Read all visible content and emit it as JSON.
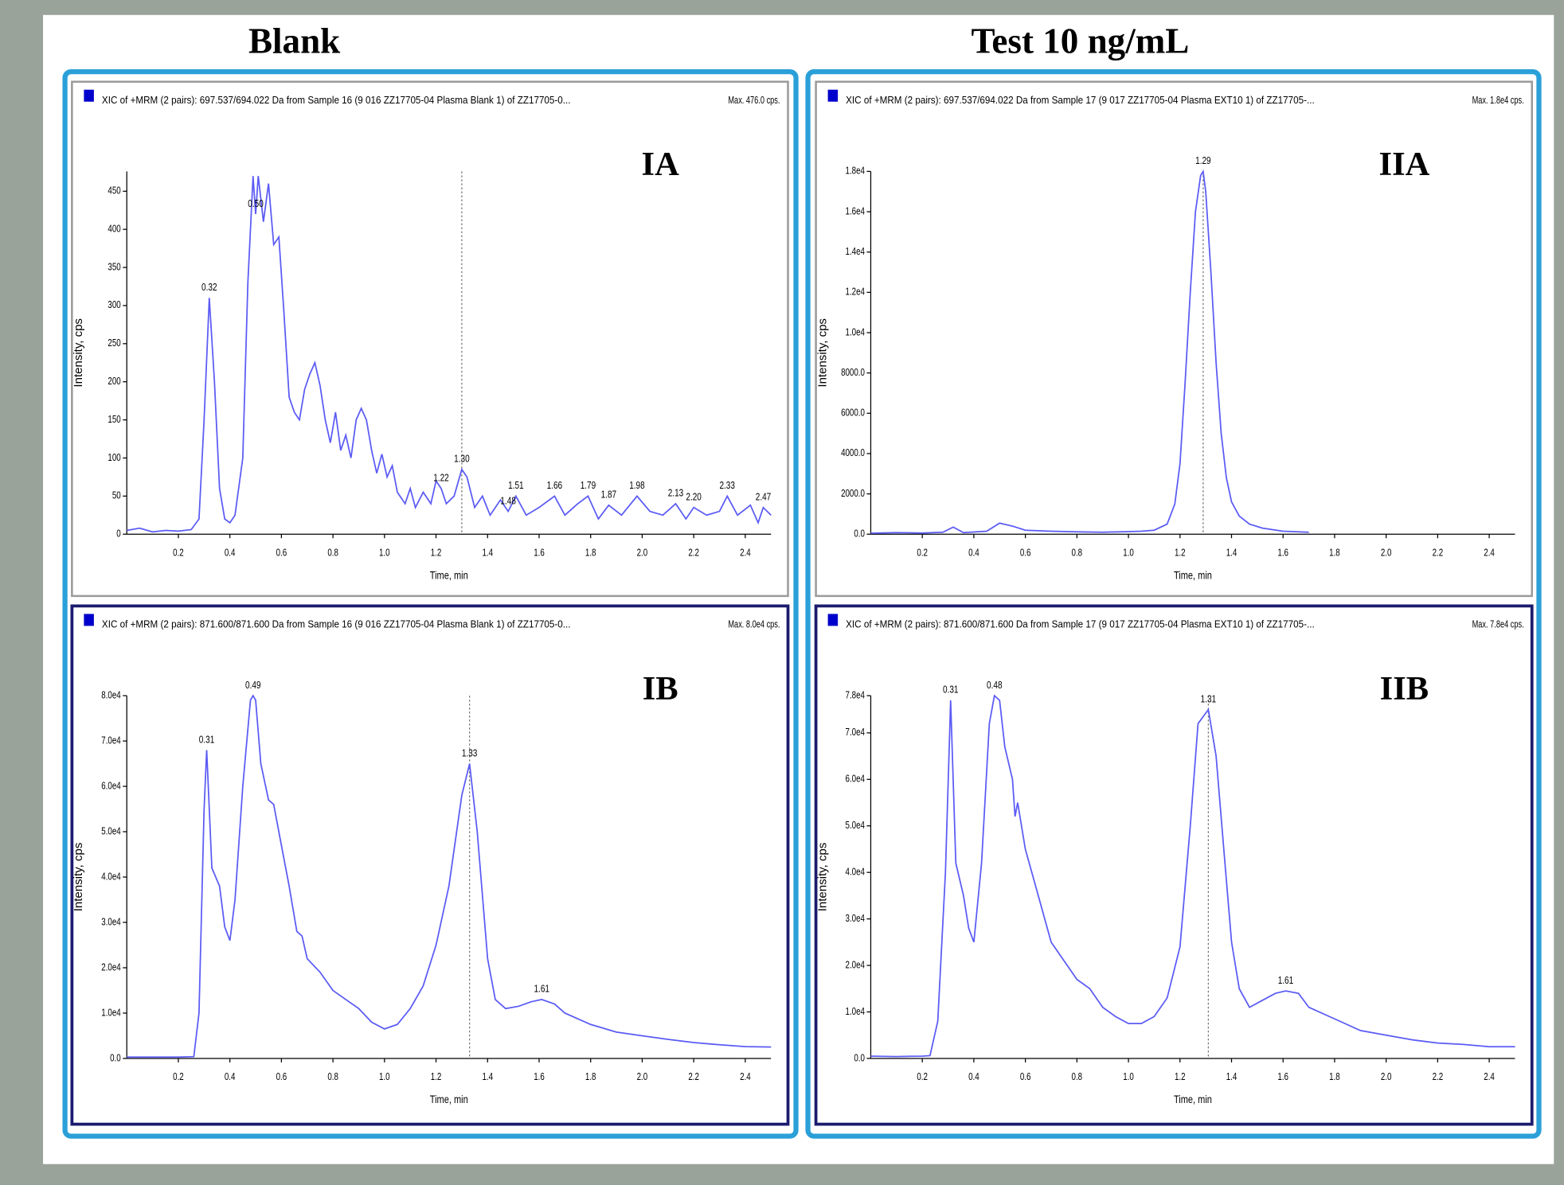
{
  "headers": [
    "Blank",
    "Test 10 ng/mL"
  ],
  "chart_data": [
    {
      "type": "line",
      "panel_label": "IA",
      "title": "XIC of +MRM (2 pairs): 697.537/694.022 Da  from Sample 16 (9 016 ZZ17705-04 Plasma Blank 1) of ZZ17705-0...",
      "max_label": "Max. 476.0 cps.",
      "x_label": "Time, min",
      "y_label": "Intensity, cps",
      "color": "#5b5bf5",
      "x": [
        0.0,
        0.05,
        0.1,
        0.15,
        0.2,
        0.25,
        0.28,
        0.3,
        0.32,
        0.34,
        0.36,
        0.38,
        0.4,
        0.42,
        0.45,
        0.47,
        0.49,
        0.5,
        0.51,
        0.53,
        0.55,
        0.57,
        0.59,
        0.61,
        0.63,
        0.65,
        0.67,
        0.69,
        0.71,
        0.73,
        0.75,
        0.77,
        0.79,
        0.81,
        0.83,
        0.85,
        0.87,
        0.89,
        0.91,
        0.93,
        0.95,
        0.97,
        0.99,
        1.01,
        1.03,
        1.05,
        1.08,
        1.1,
        1.12,
        1.15,
        1.18,
        1.2,
        1.22,
        1.24,
        1.27,
        1.3,
        1.32,
        1.35,
        1.38,
        1.41,
        1.45,
        1.48,
        1.51,
        1.55,
        1.6,
        1.66,
        1.7,
        1.75,
        1.79,
        1.83,
        1.87,
        1.92,
        1.98,
        2.03,
        2.08,
        2.13,
        2.17,
        2.2,
        2.25,
        2.3,
        2.33,
        2.37,
        2.42,
        2.45,
        2.47,
        2.5
      ],
      "values": [
        5,
        8,
        3,
        5,
        4,
        6,
        20,
        150,
        310,
        200,
        60,
        20,
        15,
        25,
        100,
        330,
        470,
        420,
        470,
        410,
        460,
        380,
        390,
        290,
        180,
        160,
        150,
        190,
        210,
        225,
        195,
        150,
        120,
        160,
        110,
        130,
        100,
        150,
        165,
        150,
        110,
        80,
        105,
        75,
        90,
        55,
        40,
        60,
        35,
        55,
        40,
        70,
        60,
        40,
        50,
        85,
        75,
        35,
        50,
        25,
        45,
        30,
        50,
        25,
        35,
        50,
        25,
        40,
        50,
        20,
        38,
        25,
        50,
        30,
        25,
        40,
        20,
        35,
        25,
        30,
        50,
        25,
        38,
        15,
        35,
        25
      ],
      "xlim": [
        0,
        2.5
      ],
      "ylim": [
        0,
        476
      ],
      "xticks": [
        0.2,
        0.4,
        0.6,
        0.8,
        {
          "value": 1,
          "label": "1.0"
        },
        1.2,
        1.4,
        1.6,
        1.8,
        {
          "value": 2,
          "label": "2.0"
        },
        2.2,
        2.4
      ],
      "yticks": [
        0,
        50,
        100,
        150,
        200,
        250,
        300,
        350,
        400,
        450
      ],
      "cursor_x": 1.3,
      "annotations": [
        {
          "value": 0.32,
          "label": "0.32"
        },
        {
          "value": 0.5,
          "label": "0.50"
        },
        {
          "value": 1.22,
          "label": "1.22"
        },
        {
          "value": 1.3,
          "label": "1.30"
        },
        {
          "value": 1.48,
          "label": "1.48"
        },
        {
          "value": 1.51,
          "label": "1.51"
        },
        {
          "value": 1.66,
          "label": "1.66"
        },
        {
          "value": 1.79,
          "label": "1.79"
        },
        {
          "value": 1.87,
          "label": "1.87"
        },
        {
          "value": 1.98,
          "label": "1.98"
        },
        {
          "value": 2.13,
          "label": "2.13"
        },
        {
          "value": 2.2,
          "label": "2.20"
        },
        {
          "value": 2.33,
          "label": "2.33"
        },
        {
          "value": 2.47,
          "label": "2.47"
        }
      ]
    },
    {
      "type": "line",
      "panel_label": "IIA",
      "title": "XIC of +MRM (2 pairs): 697.537/694.022 Da  from Sample 17 (9 017 ZZ17705-04 Plasma EXT10 1) of ZZ17705-...",
      "max_label": "Max. 1.8e4 cps.",
      "x_label": "Time, min",
      "y_label": "Intensity, cps",
      "color": "#5b5bf5",
      "x": [
        0.0,
        0.1,
        0.2,
        0.28,
        0.32,
        0.36,
        0.45,
        0.5,
        0.55,
        0.6,
        0.7,
        0.8,
        0.9,
        1.0,
        1.05,
        1.1,
        1.15,
        1.18,
        1.2,
        1.22,
        1.24,
        1.26,
        1.28,
        1.29,
        1.3,
        1.32,
        1.34,
        1.36,
        1.38,
        1.4,
        1.43,
        1.47,
        1.52,
        1.6,
        1.7
      ],
      "values": [
        50,
        80,
        60,
        100,
        350,
        80,
        150,
        550,
        400,
        200,
        150,
        120,
        100,
        130,
        150,
        200,
        500,
        1500,
        3500,
        7500,
        12000,
        16000,
        17800,
        18000,
        17000,
        13000,
        8500,
        5000,
        2800,
        1600,
        900,
        500,
        300,
        150,
        100
      ],
      "xlim": [
        0,
        2.5
      ],
      "ylim": [
        0,
        18000
      ],
      "xticks": [
        0.2,
        0.4,
        0.6,
        0.8,
        {
          "value": 1,
          "label": "1.0"
        },
        1.2,
        1.4,
        1.6,
        1.8,
        {
          "value": 2,
          "label": "2.0"
        },
        2.2,
        2.4
      ],
      "yticks": [
        {
          "value": 0,
          "label": "0.0"
        },
        {
          "value": 2000,
          "label": "2000.0"
        },
        {
          "value": 4000,
          "label": "4000.0"
        },
        {
          "value": 6000,
          "label": "6000.0"
        },
        {
          "value": 8000,
          "label": "8000.0"
        },
        {
          "value": 10000,
          "label": "1.0e4"
        },
        {
          "value": 12000,
          "label": "1.2e4"
        },
        {
          "value": 14000,
          "label": "1.4e4"
        },
        {
          "value": 16000,
          "label": "1.6e4"
        },
        {
          "value": 18000,
          "label": "1.8e4"
        }
      ],
      "cursor_x": 1.29,
      "annotations": [
        {
          "value": 1.29,
          "label": "1.29"
        }
      ]
    },
    {
      "type": "line",
      "panel_label": "IB",
      "title": "XIC of +MRM (2 pairs): 871.600/871.600 Da  from Sample 16 (9 016 ZZ17705-04 Plasma Blank 1) of ZZ17705-0...",
      "max_label": "Max. 8.0e4 cps.",
      "x_label": "Time, min",
      "y_label": "Intensity, cps",
      "color": "#5b5bf5",
      "x": [
        0.0,
        0.1,
        0.2,
        0.26,
        0.28,
        0.3,
        0.31,
        0.33,
        0.36,
        0.38,
        0.4,
        0.42,
        0.45,
        0.48,
        0.49,
        0.5,
        0.52,
        0.55,
        0.57,
        0.6,
        0.63,
        0.66,
        0.68,
        0.7,
        0.75,
        0.8,
        0.85,
        0.9,
        0.95,
        1.0,
        1.05,
        1.1,
        1.15,
        1.2,
        1.25,
        1.3,
        1.33,
        1.36,
        1.4,
        1.43,
        1.47,
        1.52,
        1.57,
        1.61,
        1.66,
        1.7,
        1.8,
        1.9,
        2.0,
        2.1,
        2.2,
        2.3,
        2.4,
        2.5
      ],
      "values": [
        300,
        300,
        300,
        400,
        10000,
        55000,
        68000,
        42000,
        38000,
        29000,
        26000,
        35000,
        60000,
        79000,
        80000,
        79000,
        65000,
        57000,
        56000,
        47000,
        38000,
        28000,
        27000,
        22000,
        19000,
        15000,
        13000,
        11000,
        8000,
        6500,
        7500,
        11000,
        16000,
        25000,
        38000,
        58000,
        65000,
        50000,
        22000,
        13000,
        11000,
        11500,
        12500,
        13000,
        12000,
        10000,
        7500,
        5800,
        5000,
        4200,
        3500,
        3000,
        2600,
        2500
      ],
      "xlim": [
        0,
        2.5
      ],
      "ylim": [
        0,
        80000
      ],
      "xticks": [
        0.2,
        0.4,
        0.6,
        0.8,
        {
          "value": 1,
          "label": "1.0"
        },
        1.2,
        1.4,
        1.6,
        1.8,
        {
          "value": 2,
          "label": "2.0"
        },
        2.2,
        2.4
      ],
      "yticks": [
        {
          "value": 0,
          "label": "0.0"
        },
        {
          "value": 10000,
          "label": "1.0e4"
        },
        {
          "value": 20000,
          "label": "2.0e4"
        },
        {
          "value": 30000,
          "label": "3.0e4"
        },
        {
          "value": 40000,
          "label": "4.0e4"
        },
        {
          "value": 50000,
          "label": "5.0e4"
        },
        {
          "value": 60000,
          "label": "6.0e4"
        },
        {
          "value": 70000,
          "label": "7.0e4"
        },
        {
          "value": 80000,
          "label": "8.0e4"
        }
      ],
      "cursor_x": 1.33,
      "annotations": [
        {
          "value": 0.31,
          "label": "0.31"
        },
        {
          "value": 0.49,
          "label": "0.49"
        },
        {
          "value": 1.33,
          "label": "1.33"
        },
        {
          "value": 1.61,
          "label": "1.61"
        }
      ]
    },
    {
      "type": "line",
      "panel_label": "IIB",
      "title": "XIC of +MRM (2 pairs): 871.600/871.600 Da  from Sample 17 (9 017 ZZ17705-04 Plasma EXT10 1) of ZZ17705-...",
      "max_label": "Max. 7.8e4 cps.",
      "x_label": "Time, min",
      "y_label": "Intensity, cps",
      "color": "#5b5bf5",
      "x": [
        0.0,
        0.1,
        0.2,
        0.23,
        0.26,
        0.29,
        0.31,
        0.33,
        0.36,
        0.38,
        0.4,
        0.43,
        0.46,
        0.48,
        0.5,
        0.52,
        0.55,
        0.56,
        0.57,
        0.6,
        0.65,
        0.7,
        0.75,
        0.8,
        0.85,
        0.9,
        0.95,
        1.0,
        1.05,
        1.1,
        1.15,
        1.2,
        1.24,
        1.27,
        1.31,
        1.34,
        1.37,
        1.4,
        1.43,
        1.47,
        1.52,
        1.57,
        1.61,
        1.66,
        1.7,
        1.8,
        1.9,
        2.0,
        2.1,
        2.2,
        2.3,
        2.4,
        2.5
      ],
      "values": [
        500,
        400,
        500,
        600,
        8000,
        40000,
        77000,
        42000,
        35000,
        28000,
        25000,
        42000,
        72000,
        78000,
        77000,
        67000,
        60000,
        52000,
        55000,
        45000,
        35000,
        25000,
        21000,
        17000,
        15000,
        11000,
        9000,
        7500,
        7500,
        9000,
        13000,
        24000,
        50000,
        72000,
        75000,
        65000,
        45000,
        25000,
        15000,
        11000,
        12500,
        14000,
        14500,
        14000,
        11000,
        8500,
        6000,
        5000,
        4000,
        3300,
        3000,
        2500,
        2500
      ],
      "xlim": [
        0,
        2.5
      ],
      "ylim": [
        0,
        78000
      ],
      "xticks": [
        0.2,
        0.4,
        0.6,
        0.8,
        {
          "value": 1,
          "label": "1.0"
        },
        1.2,
        1.4,
        1.6,
        1.8,
        {
          "value": 2,
          "label": "2.0"
        },
        2.2,
        2.4
      ],
      "yticks": [
        {
          "value": 0,
          "label": "0.0"
        },
        {
          "value": 10000,
          "label": "1.0e4"
        },
        {
          "value": 20000,
          "label": "2.0e4"
        },
        {
          "value": 30000,
          "label": "3.0e4"
        },
        {
          "value": 40000,
          "label": "4.0e4"
        },
        {
          "value": 50000,
          "label": "5.0e4"
        },
        {
          "value": 60000,
          "label": "6.0e4"
        },
        {
          "value": 70000,
          "label": "7.0e4"
        },
        {
          "value": 78000,
          "label": "7.8e4"
        }
      ],
      "cursor_x": 1.31,
      "annotations": [
        {
          "value": 0.31,
          "label": "0.31"
        },
        {
          "value": 0.48,
          "label": "0.48"
        },
        {
          "value": 1.31,
          "label": "1.31"
        },
        {
          "value": 1.61,
          "label": "1.61"
        }
      ]
    }
  ]
}
